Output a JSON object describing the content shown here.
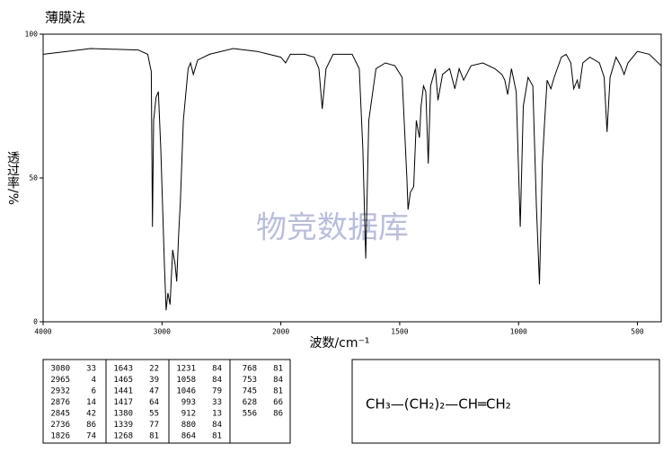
{
  "chart_data": {
    "type": "line",
    "title": "薄膜法",
    "x_label": "波数/cm⁻¹",
    "y_label": "透过率/%",
    "watermark": "物竞数据库",
    "color": "#000000",
    "xlim": [
      4000,
      400
    ],
    "x_scale_break": 2000,
    "x_scale_factor": 2,
    "xticks": [
      4000,
      3000,
      2000,
      1500,
      1000,
      500
    ],
    "ylim": [
      0,
      100
    ],
    "yticks": [
      0,
      50,
      100
    ],
    "x": [
      4000,
      3800,
      3600,
      3200,
      3120,
      3090,
      3080,
      3070,
      3050,
      3030,
      3010,
      2980,
      2965,
      2950,
      2932,
      2910,
      2890,
      2876,
      2860,
      2845,
      2820,
      2780,
      2760,
      2736,
      2700,
      2600,
      2400,
      2200,
      2100,
      2000,
      1980,
      1960,
      1900,
      1860,
      1840,
      1826,
      1810,
      1780,
      1700,
      1670,
      1655,
      1643,
      1630,
      1600,
      1560,
      1520,
      1490,
      1470,
      1465,
      1455,
      1441,
      1430,
      1417,
      1410,
      1400,
      1390,
      1380,
      1370,
      1350,
      1339,
      1320,
      1290,
      1268,
      1250,
      1231,
      1200,
      1150,
      1100,
      1070,
      1058,
      1046,
      1030,
      1010,
      993,
      980,
      960,
      940,
      925,
      912,
      900,
      890,
      880,
      864,
      850,
      820,
      800,
      780,
      768,
      753,
      745,
      730,
      700,
      660,
      640,
      628,
      615,
      590,
      570,
      556,
      540,
      500,
      450,
      400
    ],
    "values": [
      93,
      94,
      95,
      94.5,
      93,
      87,
      33,
      70,
      78,
      80,
      60,
      20,
      4,
      10,
      6,
      25,
      20,
      14,
      30,
      42,
      70,
      88,
      90,
      86,
      91,
      93,
      95,
      94,
      93,
      92,
      90,
      93,
      93,
      92,
      88,
      74,
      88,
      93,
      93,
      88,
      60,
      22,
      70,
      88,
      90,
      89,
      85,
      50,
      39,
      45,
      47,
      70,
      64,
      75,
      82,
      80,
      55,
      82,
      88,
      77,
      86,
      88,
      81,
      88,
      84,
      89,
      90,
      88,
      86,
      84,
      79,
      88,
      80,
      33,
      75,
      85,
      82,
      40,
      13,
      55,
      70,
      84,
      81,
      85,
      92,
      93,
      90,
      81,
      84,
      81,
      90,
      92,
      90,
      85,
      66,
      85,
      92,
      89,
      86,
      90,
      94,
      93,
      89
    ],
    "peak_table": [
      [
        3080,
        33
      ],
      [
        2965,
        4
      ],
      [
        2932,
        6
      ],
      [
        2876,
        14
      ],
      [
        2845,
        42
      ],
      [
        2736,
        86
      ],
      [
        1826,
        74
      ],
      [
        1643,
        22
      ],
      [
        1465,
        39
      ],
      [
        1441,
        47
      ],
      [
        1417,
        64
      ],
      [
        1380,
        55
      ],
      [
        1339,
        77
      ],
      [
        1268,
        81
      ],
      [
        1231,
        84
      ],
      [
        1058,
        84
      ],
      [
        1046,
        79
      ],
      [
        993,
        33
      ],
      [
        912,
        13
      ],
      [
        880,
        84
      ],
      [
        864,
        81
      ],
      [
        768,
        81
      ],
      [
        753,
        84
      ],
      [
        745,
        81
      ],
      [
        628,
        66
      ],
      [
        556,
        86
      ]
    ],
    "formula": "CH₃—(CH₂)₂—CH═CH₂"
  }
}
